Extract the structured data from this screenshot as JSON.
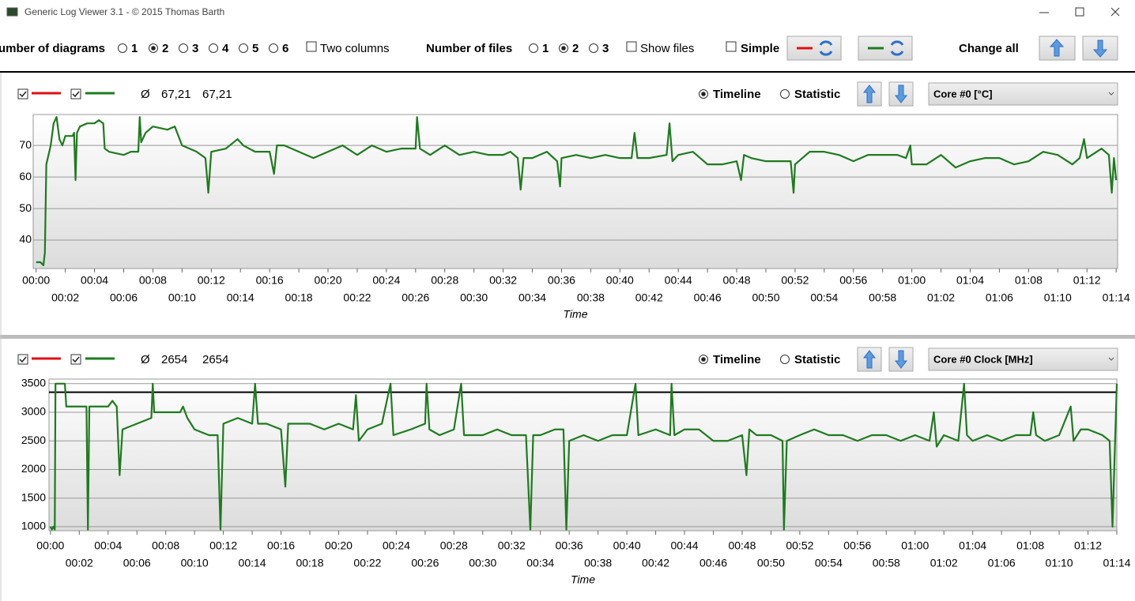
{
  "window": {
    "title": "Generic Log Viewer 3.1 - © 2015 Thomas Barth"
  },
  "toolbar": {
    "diagrams_label": "umber of diagrams",
    "diagram_options": [
      "1",
      "2",
      "3",
      "4",
      "5",
      "6"
    ],
    "diagrams_selected_index": 1,
    "two_columns": "Two columns",
    "files_label": "Number of files",
    "file_options": [
      "1",
      "2",
      "3"
    ],
    "files_selected_index": 1,
    "show_files": "Show files",
    "simple": "Simple",
    "change_all": "Change all"
  },
  "panels": [
    {
      "legend_colors": [
        "#e01010",
        "#1e7b1e"
      ],
      "avg_symbol": "Ø",
      "averages": [
        "67,21",
        "67,21"
      ],
      "timeline": "Timeline",
      "statistic": "Statistic",
      "timeline_selected": true,
      "sensor": "Core #0 [°C]",
      "chart_data": {
        "type": "line",
        "xlabel": "Time",
        "grid": true,
        "x": [
          0,
          0.3,
          0.5,
          0.6,
          0.7,
          1,
          1.2,
          1.4,
          1.6,
          1.8,
          2,
          2.5,
          2.6,
          2.7,
          2.8,
          3,
          3.5,
          4,
          4.3,
          4.6,
          4.7,
          5,
          6,
          6.5,
          7,
          7.1,
          7.2,
          7.5,
          8,
          9,
          9.5,
          10,
          11,
          11.6,
          11.8,
          12,
          13,
          13.8,
          14.2,
          15,
          16,
          16.3,
          16.5,
          17,
          18,
          19,
          20,
          21,
          22,
          23,
          24,
          25,
          26,
          26.1,
          26.3,
          27,
          28,
          29,
          30,
          31,
          32,
          32.5,
          33,
          33.2,
          33.4,
          34,
          35,
          35.7,
          35.9,
          36,
          37,
          38,
          39,
          40,
          40.8,
          41,
          41.2,
          42,
          43.2,
          43.4,
          43.6,
          44,
          45,
          46,
          47,
          48,
          48.3,
          48.5,
          49,
          50,
          51.7,
          51.9,
          52,
          53,
          54,
          55,
          56,
          57,
          58,
          59,
          59.6,
          59.9,
          60,
          61,
          62,
          63,
          64,
          65,
          66,
          67,
          68,
          69,
          70,
          71,
          71.5,
          71.8,
          72,
          73,
          73.5,
          73.7,
          73.85,
          74
        ],
        "series": [
          {
            "color": "#1e7b1e",
            "values": [
              33,
              33,
              32,
              36,
              64,
              70,
              77,
              79,
              72,
              70,
              73,
              73,
              74,
              59,
              74,
              76,
              77,
              77,
              78,
              77,
              69,
              68,
              67,
              68,
              68,
              79,
              71,
              74,
              76,
              75,
              76,
              70,
              68,
              66,
              55,
              68,
              69,
              72,
              70,
              68,
              68,
              61,
              70,
              70,
              68,
              66,
              68,
              70,
              67,
              70,
              68,
              69,
              69,
              79,
              69,
              67,
              70,
              67,
              68,
              67,
              67,
              68,
              66,
              56,
              66,
              66,
              68,
              65,
              57,
              66,
              67,
              66,
              67,
              66,
              66,
              74,
              66,
              66,
              67,
              77,
              65,
              67,
              68,
              64,
              64,
              65,
              59,
              67,
              66,
              65,
              65,
              55,
              64,
              68,
              68,
              67,
              65,
              67,
              67,
              67,
              66,
              70,
              64,
              64,
              67,
              63,
              65,
              66,
              66,
              64,
              65,
              68,
              67,
              64,
              66,
              72,
              66,
              69,
              67,
              55,
              66,
              59
            ]
          }
        ],
        "xlim": [
          -0.2,
          74.1
        ],
        "ylim": [
          31,
          79.8
        ],
        "yticks": [
          40,
          50,
          60,
          70
        ],
        "xticks": [
          {
            "value": 0,
            "label": "00:00"
          },
          {
            "value": 2,
            "label": "00:02"
          },
          {
            "value": 4,
            "label": "00:04"
          },
          {
            "value": 6,
            "label": "00:06"
          },
          {
            "value": 8,
            "label": "00:08"
          },
          {
            "value": 10,
            "label": "00:10"
          },
          {
            "value": 12,
            "label": "00:12"
          },
          {
            "value": 14,
            "label": "00:14"
          },
          {
            "value": 16,
            "label": "00:16"
          },
          {
            "value": 18,
            "label": "00:18"
          },
          {
            "value": 20,
            "label": "00:20"
          },
          {
            "value": 22,
            "label": "00:22"
          },
          {
            "value": 24,
            "label": "00:24"
          },
          {
            "value": 26,
            "label": "00:26"
          },
          {
            "value": 28,
            "label": "00:28"
          },
          {
            "value": 30,
            "label": "00:30"
          },
          {
            "value": 32,
            "label": "00:32"
          },
          {
            "value": 34,
            "label": "00:34"
          },
          {
            "value": 36,
            "label": "00:36"
          },
          {
            "value": 38,
            "label": "00:38"
          },
          {
            "value": 40,
            "label": "00:40"
          },
          {
            "value": 42,
            "label": "00:42"
          },
          {
            "value": 44,
            "label": "00:44"
          },
          {
            "value": 46,
            "label": "00:46"
          },
          {
            "value": 48,
            "label": "00:48"
          },
          {
            "value": 50,
            "label": "00:50"
          },
          {
            "value": 52,
            "label": "00:52"
          },
          {
            "value": 54,
            "label": "00:54"
          },
          {
            "value": 56,
            "label": "00:56"
          },
          {
            "value": 58,
            "label": "00:58"
          },
          {
            "value": 60,
            "label": "01:00"
          },
          {
            "value": 62,
            "label": "01:02"
          },
          {
            "value": 64,
            "label": "01:04"
          },
          {
            "value": 66,
            "label": "01:06"
          },
          {
            "value": 68,
            "label": "01:08"
          },
          {
            "value": 70,
            "label": "01:10"
          },
          {
            "value": 72,
            "label": "01:12"
          },
          {
            "value": 74,
            "label": "01:14"
          }
        ]
      }
    },
    {
      "legend_colors": [
        "#e01010",
        "#1e7b1e"
      ],
      "avg_symbol": "Ø",
      "averages": [
        "2654",
        "2654"
      ],
      "timeline": "Timeline",
      "statistic": "Statistic",
      "timeline_selected": true,
      "sensor": "Core #0 Clock [MHz]",
      "chart_data": {
        "type": "line",
        "xlabel": "Time",
        "grid": true,
        "reference_line": 3350,
        "reference_color": "#000000",
        "x": [
          0,
          0.1,
          0.2,
          0.3,
          0.35,
          0.6,
          1,
          1.1,
          2,
          2.5,
          2.6,
          2.7,
          3,
          4,
          4.3,
          4.6,
          4.8,
          5,
          6,
          7,
          7.1,
          7.2,
          8,
          9,
          9.2,
          9.5,
          10,
          11,
          11.6,
          11.8,
          12,
          13,
          14,
          14.2,
          14.4,
          15,
          16,
          16.3,
          16.5,
          17,
          18,
          19,
          20,
          21,
          21.2,
          21.4,
          22,
          23,
          23.6,
          23.8,
          25,
          26,
          26.1,
          26.3,
          27,
          28,
          28.5,
          28.7,
          30,
          31,
          32,
          33,
          33.3,
          33.5,
          34,
          35,
          35.6,
          35.8,
          36,
          37,
          38,
          39,
          40,
          40.6,
          40.8,
          42,
          43,
          43.1,
          43.3,
          44,
          45,
          46,
          47,
          48,
          48.3,
          48.5,
          49,
          50,
          50.8,
          50.9,
          51.1,
          52,
          53,
          54,
          55,
          56,
          57,
          58,
          59,
          60,
          61,
          61.3,
          61.5,
          62,
          63,
          63.4,
          63.6,
          64,
          65,
          66,
          67,
          68,
          68.2,
          68.4,
          69,
          70,
          70.8,
          71,
          71.5,
          72,
          73,
          73.5,
          73.7,
          74
        ],
        "series": [
          {
            "color": "#1e7b1e",
            "values": [
              1000,
              950,
              1000,
              950,
              3500,
              3500,
              3500,
              3100,
              3100,
              3100,
              950,
              3100,
              3100,
              3100,
              3200,
              3100,
              1900,
              2700,
              2800,
              2900,
              3500,
              3000,
              3000,
              3000,
              3100,
              2900,
              2700,
              2600,
              2600,
              950,
              2800,
              2900,
              2800,
              3500,
              2800,
              2800,
              2700,
              1700,
              2800,
              2800,
              2800,
              2700,
              2800,
              2700,
              3300,
              2500,
              2700,
              2800,
              3500,
              2600,
              2700,
              2800,
              3500,
              2700,
              2600,
              2700,
              3500,
              2600,
              2600,
              2700,
              2600,
              2600,
              950,
              2600,
              2600,
              2700,
              2700,
              950,
              2500,
              2600,
              2500,
              2600,
              2600,
              3500,
              2600,
              2700,
              2600,
              3500,
              2600,
              2700,
              2700,
              2500,
              2500,
              2600,
              1900,
              2700,
              2600,
              2600,
              2500,
              950,
              2500,
              2600,
              2700,
              2600,
              2600,
              2500,
              2600,
              2600,
              2500,
              2600,
              2500,
              3000,
              2400,
              2600,
              2500,
              3500,
              2600,
              2500,
              2600,
              2500,
              2600,
              2600,
              3000,
              2600,
              2500,
              2600,
              3100,
              2500,
              2700,
              2700,
              2600,
              2500,
              1000,
              3500
            ]
          }
        ],
        "xlim": [
          -0.1,
          74
        ],
        "ylim": [
          930,
          3580
        ],
        "yticks": [
          1000,
          1500,
          2000,
          2500,
          3000,
          3500
        ],
        "xticks": [
          {
            "value": 0,
            "label": "00:00"
          },
          {
            "value": 2,
            "label": "00:02"
          },
          {
            "value": 4,
            "label": "00:04"
          },
          {
            "value": 6,
            "label": "00:06"
          },
          {
            "value": 8,
            "label": "00:08"
          },
          {
            "value": 10,
            "label": "00:10"
          },
          {
            "value": 12,
            "label": "00:12"
          },
          {
            "value": 14,
            "label": "00:14"
          },
          {
            "value": 16,
            "label": "00:16"
          },
          {
            "value": 18,
            "label": "00:18"
          },
          {
            "value": 20,
            "label": "00:20"
          },
          {
            "value": 22,
            "label": "00:22"
          },
          {
            "value": 24,
            "label": "00:24"
          },
          {
            "value": 26,
            "label": "00:26"
          },
          {
            "value": 28,
            "label": "00:28"
          },
          {
            "value": 30,
            "label": "00:30"
          },
          {
            "value": 32,
            "label": "00:32"
          },
          {
            "value": 34,
            "label": "00:34"
          },
          {
            "value": 36,
            "label": "00:36"
          },
          {
            "value": 38,
            "label": "00:38"
          },
          {
            "value": 40,
            "label": "00:40"
          },
          {
            "value": 42,
            "label": "00:42"
          },
          {
            "value": 44,
            "label": "00:44"
          },
          {
            "value": 46,
            "label": "00:46"
          },
          {
            "value": 48,
            "label": "00:48"
          },
          {
            "value": 50,
            "label": "00:50"
          },
          {
            "value": 52,
            "label": "00:52"
          },
          {
            "value": 54,
            "label": "00:54"
          },
          {
            "value": 56,
            "label": "00:56"
          },
          {
            "value": 58,
            "label": "00:58"
          },
          {
            "value": 60,
            "label": "01:00"
          },
          {
            "value": 62,
            "label": "01:02"
          },
          {
            "value": 64,
            "label": "01:04"
          },
          {
            "value": 66,
            "label": "01:06"
          },
          {
            "value": 68,
            "label": "01:08"
          },
          {
            "value": 70,
            "label": "01:10"
          },
          {
            "value": 72,
            "label": "01:12"
          },
          {
            "value": 74,
            "label": "01:14"
          }
        ]
      }
    }
  ]
}
